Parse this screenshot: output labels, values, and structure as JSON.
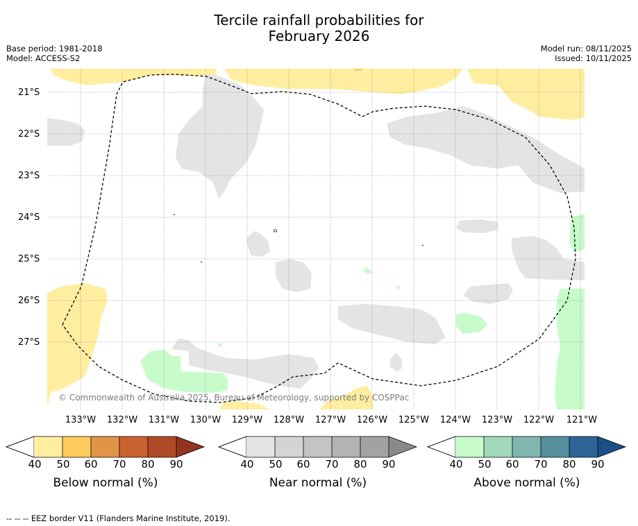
{
  "title_line1": "Tercile rainfall probabilities for",
  "title_line2": "February 2026",
  "meta_left": [
    "Base period: 1981-2018",
    "Model: ACCESS-S2"
  ],
  "meta_right": [
    "Model run: 08/11/2025",
    "Issued: 10/11/2025"
  ],
  "lat_labels": [
    "21°S",
    "22°S",
    "23°S",
    "24°S",
    "25°S",
    "26°S",
    "27°S"
  ],
  "lon_labels": [
    "133°W",
    "132°W",
    "131°W",
    "130°W",
    "129°W",
    "128°W",
    "127°W",
    "126°W",
    "125°W",
    "124°W",
    "123°W",
    "122°W",
    "121°W"
  ],
  "credit": "© Commonwealth of Australia 2025, Bureau of Meteorology, supported by COSPPac",
  "colorbars": [
    {
      "title": "Below normal (%)",
      "ticks": [
        "40",
        "50",
        "60",
        "70",
        "80",
        "90"
      ],
      "colors": [
        "#ffeda0",
        "#fecc5c",
        "#e09446",
        "#ca6230",
        "#b04a26",
        "#92351f"
      ]
    },
    {
      "title": "Near normal (%)",
      "ticks": [
        "40",
        "50",
        "60",
        "70",
        "80",
        "90"
      ],
      "colors": [
        "#e4e4e4",
        "#d4d4d4",
        "#c4c4c4",
        "#b3b3b3",
        "#a2a2a2",
        "#8a8a8a"
      ]
    },
    {
      "title": "Above normal (%)",
      "ticks": [
        "40",
        "50",
        "60",
        "70",
        "80",
        "90"
      ],
      "colors": [
        "#c7fcca",
        "#a2d8bb",
        "#7fb6b0",
        "#568e9d",
        "#2f6596",
        "#1a4f85"
      ]
    }
  ],
  "footer": "--  --  -- EEZ border V11 (Flanders Marine Institute, 2019)."
}
